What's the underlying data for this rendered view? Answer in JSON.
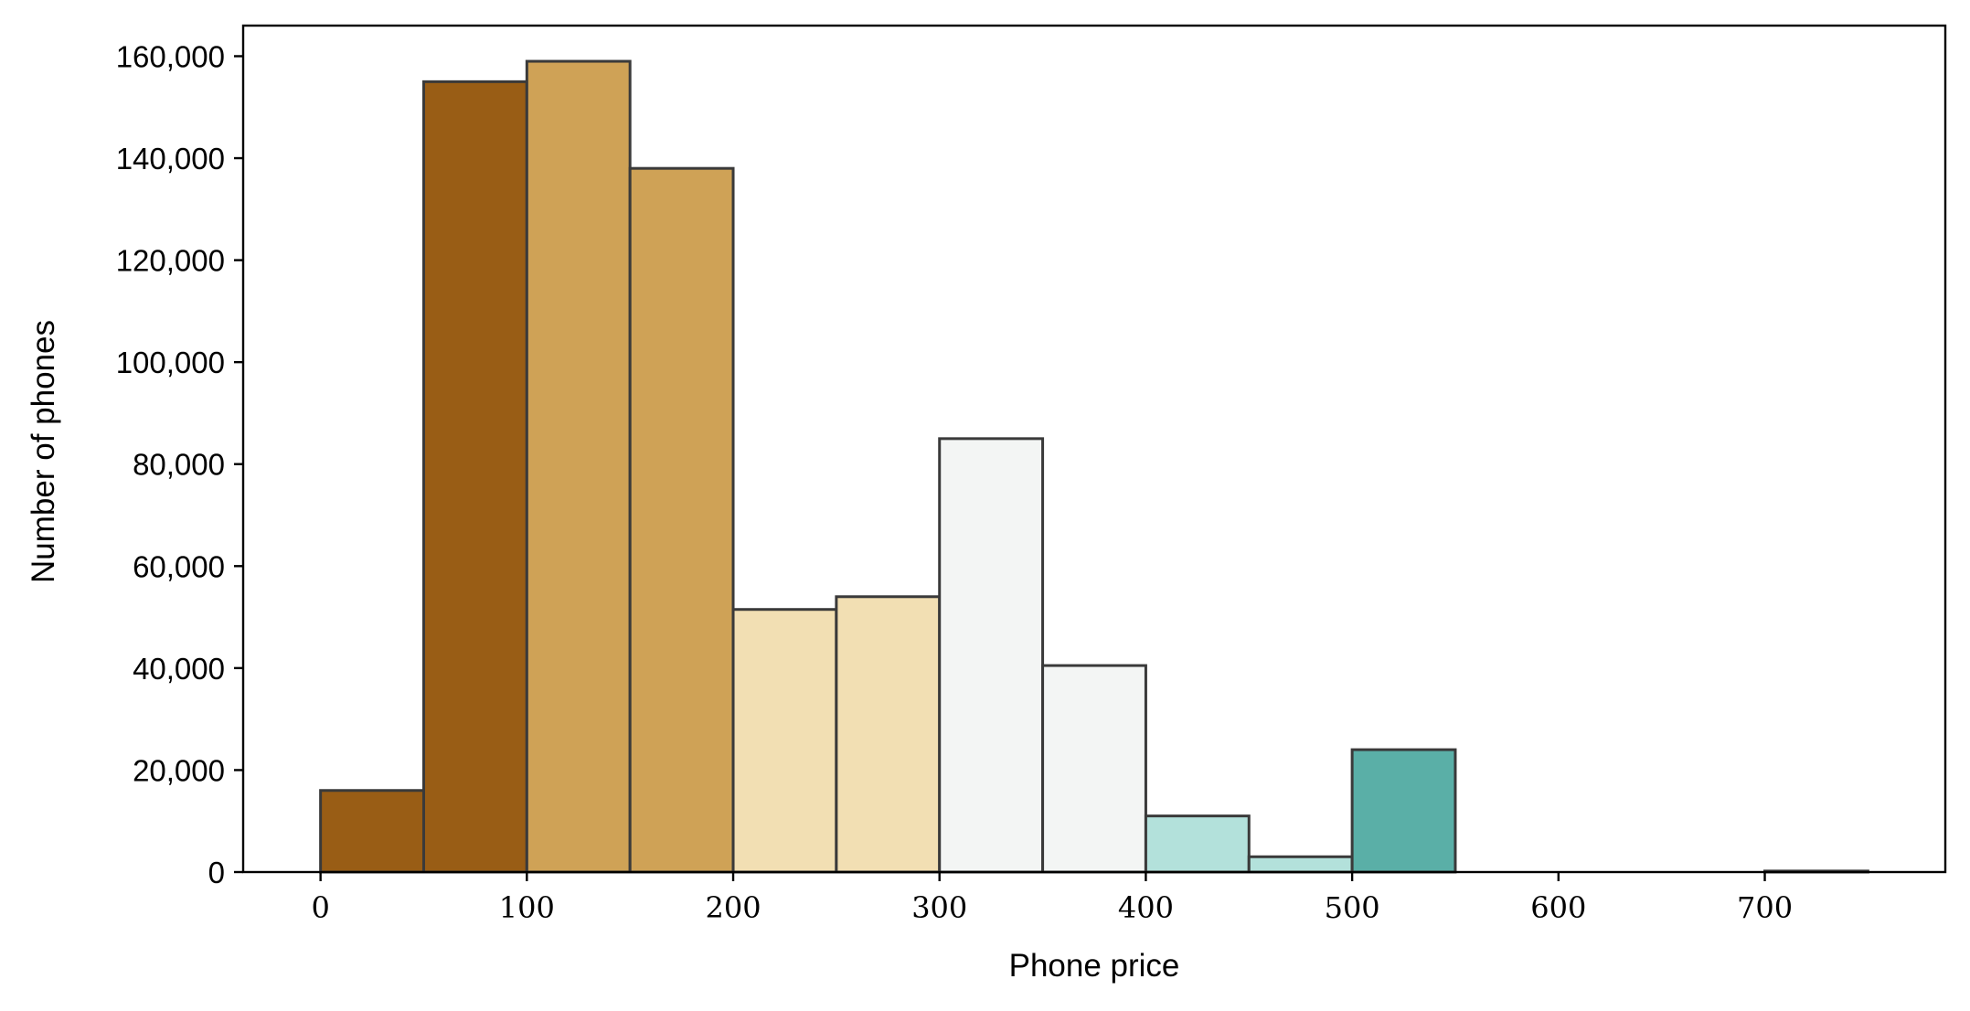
{
  "chart_data": {
    "type": "bar",
    "subtype": "histogram",
    "xlabel": "Phone price",
    "ylabel": "Number of phones",
    "xlim": [
      -37.5,
      787.5
    ],
    "ylim": [
      0,
      166000
    ],
    "xticks": [
      0,
      100,
      200,
      300,
      400,
      500,
      600,
      700
    ],
    "xtick_labels": [
      "0",
      "100",
      "200",
      "300",
      "400",
      "500",
      "600",
      "700"
    ],
    "yticks": [
      0,
      20000,
      40000,
      60000,
      80000,
      100000,
      120000,
      140000,
      160000
    ],
    "ytick_labels": [
      "0",
      "20,000",
      "40,000",
      "60,000",
      "80,000",
      "100,000",
      "120,000",
      "140,000",
      "160,000"
    ],
    "grid": false,
    "bins": [
      {
        "x0": 0,
        "x1": 50,
        "value": 16000,
        "color": "#995d15"
      },
      {
        "x0": 50,
        "x1": 100,
        "value": 155000,
        "color": "#995d15"
      },
      {
        "x0": 100,
        "x1": 150,
        "value": 159000,
        "color": "#cfa256"
      },
      {
        "x0": 150,
        "x1": 200,
        "value": 138000,
        "color": "#cfa256"
      },
      {
        "x0": 200,
        "x1": 250,
        "value": 51500,
        "color": "#f2dfb3"
      },
      {
        "x0": 250,
        "x1": 300,
        "value": 54000,
        "color": "#f2dfb3"
      },
      {
        "x0": 300,
        "x1": 350,
        "value": 85000,
        "color": "#f3f5f4"
      },
      {
        "x0": 350,
        "x1": 400,
        "value": 40500,
        "color": "#f3f5f4"
      },
      {
        "x0": 400,
        "x1": 450,
        "value": 11000,
        "color": "#b3e1db"
      },
      {
        "x0": 450,
        "x1": 500,
        "value": 3000,
        "color": "#b3e1db"
      },
      {
        "x0": 500,
        "x1": 550,
        "value": 24000,
        "color": "#5aafa7"
      },
      {
        "x0": 550,
        "x1": 600,
        "value": 0,
        "color": "#5aafa7"
      },
      {
        "x0": 600,
        "x1": 650,
        "value": 0,
        "color": "#5aafa7"
      },
      {
        "x0": 650,
        "x1": 700,
        "value": 0,
        "color": "#5aafa7"
      },
      {
        "x0": 700,
        "x1": 750,
        "value": 200,
        "color": "#5aafa7"
      }
    ]
  }
}
